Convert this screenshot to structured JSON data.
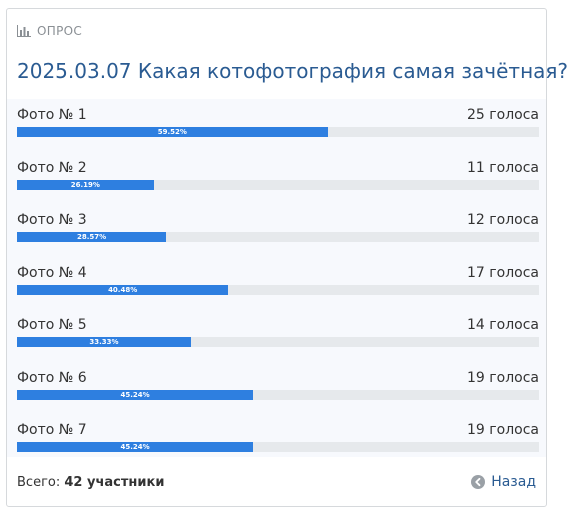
{
  "poll": {
    "header_label": "ОПРОС",
    "title": "2025.03.07 Какая котофотография самая зачётная?",
    "options": [
      {
        "label": "Фото № 1",
        "votes_text": "25 голоса",
        "percent_text": "59.52%",
        "percent": 59.52
      },
      {
        "label": "Фото № 2",
        "votes_text": "11 голоса",
        "percent_text": "26.19%",
        "percent": 26.19
      },
      {
        "label": "Фото № 3",
        "votes_text": "12 голоса",
        "percent_text": "28.57%",
        "percent": 28.57
      },
      {
        "label": "Фото № 4",
        "votes_text": "17 голоса",
        "percent_text": "40.48%",
        "percent": 40.48
      },
      {
        "label": "Фото № 5",
        "votes_text": "14 голоса",
        "percent_text": "33.33%",
        "percent": 33.33
      },
      {
        "label": "Фото № 6",
        "votes_text": "19 голоса",
        "percent_text": "45.24%",
        "percent": 45.24
      },
      {
        "label": "Фото № 7",
        "votes_text": "19 голоса",
        "percent_text": "45.24%",
        "percent": 45.24
      }
    ],
    "total_prefix": "Всего:",
    "total_value": "42 участники",
    "back_label": "Назад"
  },
  "icons": {
    "header": "bar-chart-icon",
    "back": "arrow-left-circle-icon"
  },
  "colors": {
    "accent": "#2e7fe0",
    "title": "#2a5b92",
    "track": "#e6e9ec"
  }
}
